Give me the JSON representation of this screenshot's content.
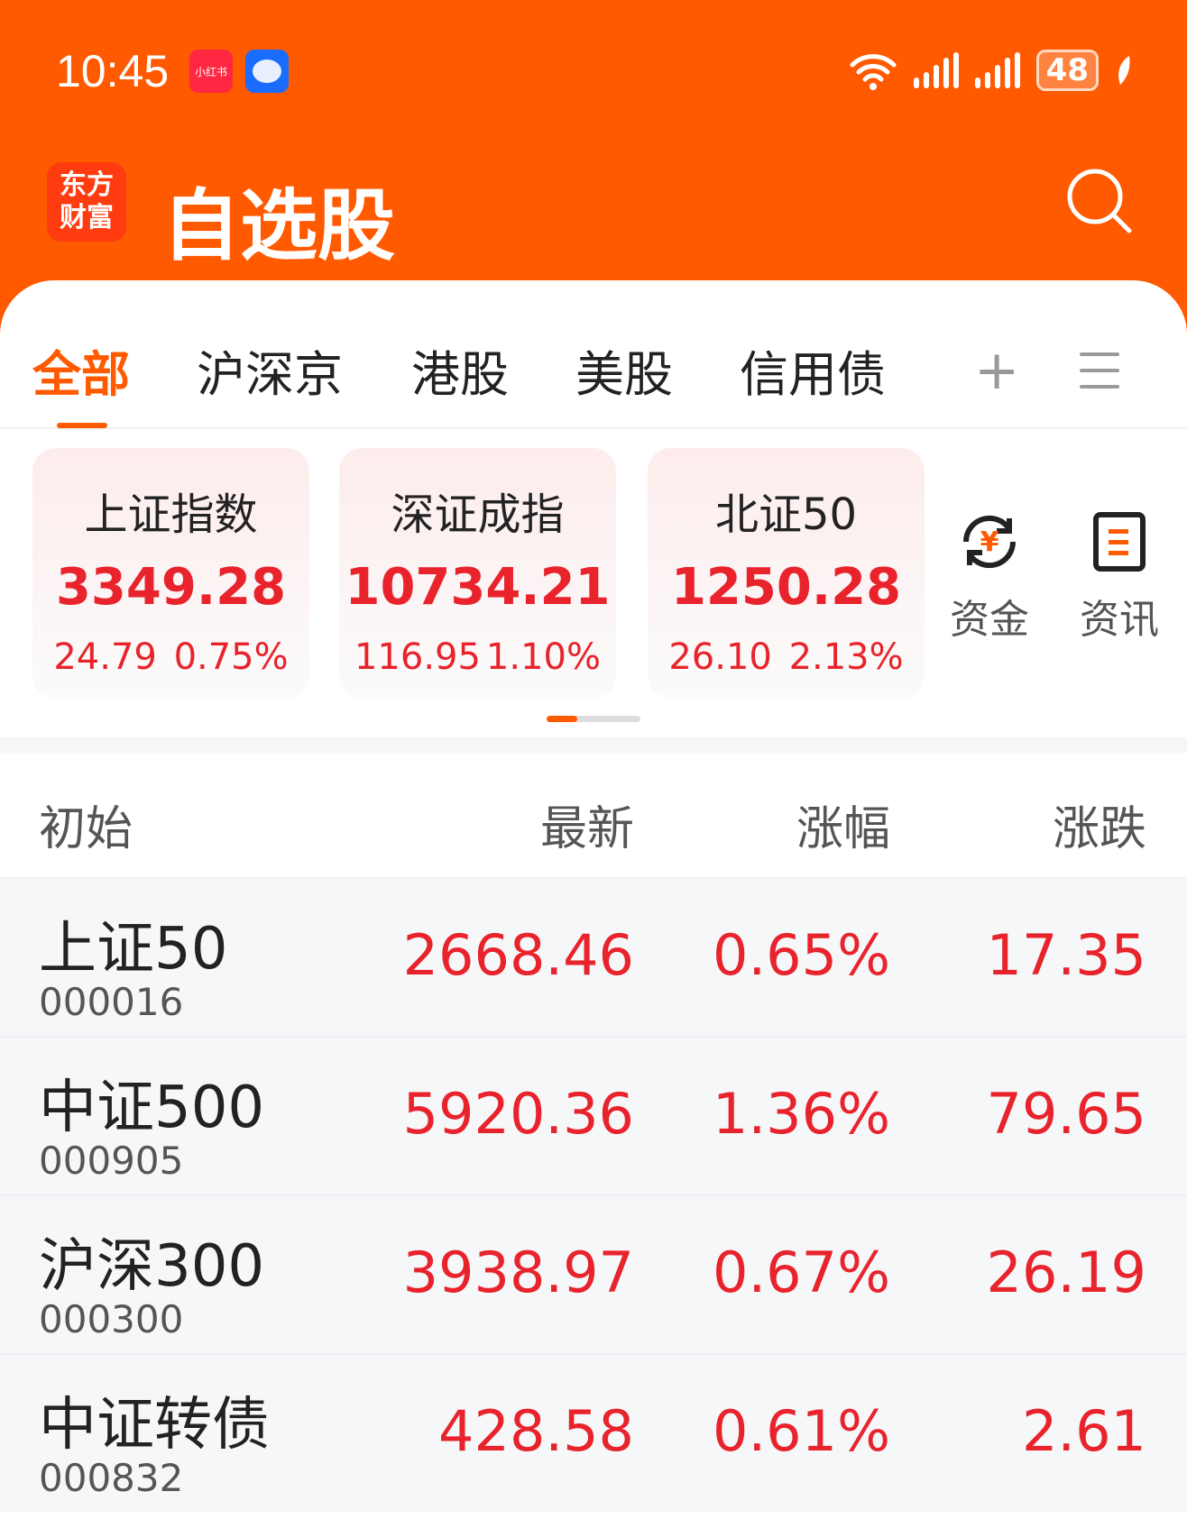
{
  "status_bar": {
    "time": "10:45",
    "app1_label": "小红书",
    "battery": "48"
  },
  "header": {
    "logo": "东方财富",
    "title": "自选股",
    "search_icon": "search-icon"
  },
  "tabs": [
    {
      "label": "全部",
      "active": true
    },
    {
      "label": "沪深京"
    },
    {
      "label": "港股"
    },
    {
      "label": "美股"
    },
    {
      "label": "信用债"
    }
  ],
  "indices": [
    {
      "name": "上证指数",
      "value": "3349.28",
      "change": "24.79",
      "pct": "0.75%"
    },
    {
      "name": "深证成指",
      "value": "10734.21",
      "change": "116.95",
      "pct": "1.10%"
    },
    {
      "name": "北证50",
      "value": "1250.28",
      "change": "26.10",
      "pct": "2.13%"
    }
  ],
  "shortcuts": [
    {
      "label": "资金",
      "icon": "yuan-flow-icon"
    },
    {
      "label": "资讯",
      "icon": "news-icon"
    }
  ],
  "table": {
    "headers": [
      "初始",
      "最新",
      "涨幅",
      "涨跌"
    ],
    "rows": [
      {
        "name": "上证50",
        "code": "000016",
        "latest": "2668.46",
        "pct": "0.65%",
        "change": "17.35"
      },
      {
        "name": "中证500",
        "code": "000905",
        "latest": "5920.36",
        "pct": "1.36%",
        "change": "79.65"
      },
      {
        "name": "沪深300",
        "code": "000300",
        "latest": "3938.97",
        "pct": "0.67%",
        "change": "26.19"
      },
      {
        "name": "中证转债",
        "code": "000832",
        "latest": "428.58",
        "pct": "0.61%",
        "change": "2.61"
      }
    ]
  },
  "colors": {
    "brand": "#ff5a00",
    "up": "#e8232c"
  }
}
